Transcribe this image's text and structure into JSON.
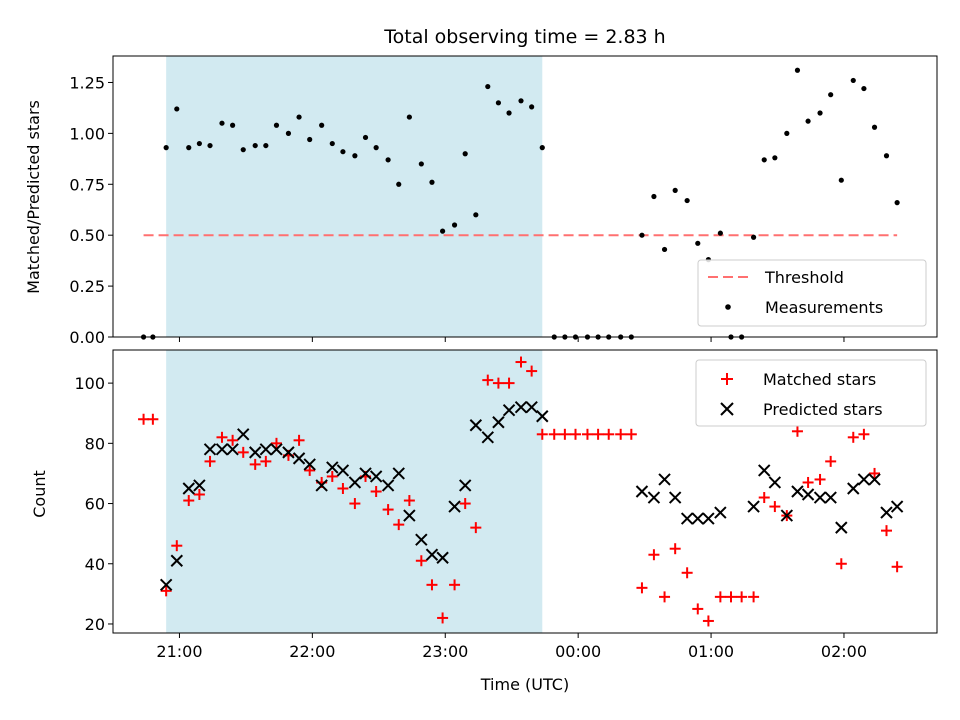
{
  "colors": {
    "shade": "#add8e6",
    "threshold": "#ff7070",
    "matched": "#ff0000",
    "predicted": "#000000",
    "measurement": "#000000"
  },
  "chart_data": [
    {
      "type": "scatter",
      "title": "Total observing time = 2.83 h",
      "xlabel": "",
      "ylabel": "Matched/Predicted stars",
      "ylim": [
        0,
        1.38
      ],
      "yticks": [
        "0.00",
        "0.25",
        "0.50",
        "0.75",
        "1.00",
        "1.25"
      ],
      "ytick_values": [
        0,
        0.25,
        0.5,
        0.75,
        1.0,
        1.25
      ],
      "shaded_span_hours": [
        20.9,
        23.73
      ],
      "threshold": {
        "name": "Threshold",
        "value": 0.5,
        "x_range_hours": [
          20.73,
          26.4
        ],
        "style": "dashed"
      },
      "legend": {
        "placement": "lower-right",
        "entries": [
          "Threshold",
          "Measurements"
        ]
      },
      "series": [
        {
          "name": "Measurements",
          "marker": "dot",
          "x_hours": [
            20.73,
            20.8,
            20.9,
            20.98,
            21.07,
            21.15,
            21.23,
            21.32,
            21.4,
            21.48,
            21.57,
            21.65,
            21.73,
            21.82,
            21.9,
            21.98,
            22.07,
            22.15,
            22.23,
            22.32,
            22.4,
            22.48,
            22.57,
            22.65,
            22.73,
            22.82,
            22.9,
            22.98,
            23.07,
            23.15,
            23.23,
            23.32,
            23.4,
            23.48,
            23.57,
            23.65,
            23.73,
            23.82,
            23.9,
            23.98,
            24.07,
            24.15,
            24.23,
            24.32,
            24.4,
            24.48,
            24.57,
            24.65,
            24.73,
            24.82,
            24.9,
            24.98,
            25.07,
            25.15,
            25.23,
            25.32,
            25.4,
            25.48,
            25.57,
            25.65,
            25.73,
            25.82,
            25.9,
            25.98,
            26.07,
            26.15,
            26.23,
            26.32,
            26.4
          ],
          "y": [
            0,
            0,
            0.93,
            1.12,
            0.93,
            0.95,
            0.94,
            1.05,
            1.04,
            0.92,
            0.94,
            0.94,
            1.04,
            1.0,
            1.08,
            0.97,
            1.04,
            0.95,
            0.91,
            0.89,
            0.98,
            0.93,
            0.87,
            0.75,
            1.08,
            0.85,
            0.76,
            0.52,
            0.55,
            0.9,
            0.6,
            1.23,
            1.15,
            1.1,
            1.16,
            1.13,
            0.93,
            0,
            0,
            0,
            0,
            0,
            0,
            0,
            0,
            0.5,
            0.69,
            0.43,
            0.72,
            0.67,
            0.46,
            0.38,
            0.51,
            0,
            0,
            0.49,
            0.87,
            0.88,
            1.0,
            1.31,
            1.06,
            1.1,
            1.19,
            0.77,
            1.26,
            1.22,
            1.03,
            0.89,
            0.66
          ]
        }
      ]
    },
    {
      "type": "scatter",
      "title": "",
      "xlabel": "Time (UTC)",
      "ylabel": "Count",
      "ylim": [
        17,
        111
      ],
      "yticks": [
        "20",
        "40",
        "60",
        "80",
        "100"
      ],
      "ytick_values": [
        20,
        40,
        60,
        80,
        100
      ],
      "xlim_hours": [
        20.5,
        26.7
      ],
      "xticks": [
        "21:00",
        "22:00",
        "23:00",
        "00:00",
        "01:00",
        "02:00"
      ],
      "xtick_values_hours": [
        21,
        22,
        23,
        24,
        25,
        26
      ],
      "shaded_span_hours": [
        20.9,
        23.73
      ],
      "legend": {
        "placement": "top-right",
        "entries": [
          "Matched stars",
          "Predicted stars"
        ]
      },
      "series": [
        {
          "name": "Matched stars",
          "marker": "plus",
          "x_hours": [
            20.73,
            20.8,
            20.9,
            20.98,
            21.07,
            21.15,
            21.23,
            21.32,
            21.4,
            21.48,
            21.57,
            21.65,
            21.73,
            21.82,
            21.9,
            21.98,
            22.07,
            22.15,
            22.23,
            22.32,
            22.4,
            22.48,
            22.57,
            22.65,
            22.73,
            22.82,
            22.9,
            22.98,
            23.07,
            23.15,
            23.23,
            23.32,
            23.4,
            23.48,
            23.57,
            23.65,
            23.73,
            23.82,
            23.9,
            23.98,
            24.07,
            24.15,
            24.23,
            24.32,
            24.4,
            24.48,
            24.57,
            24.65,
            24.73,
            24.82,
            24.9,
            24.98,
            25.07,
            25.15,
            25.23,
            25.32,
            25.4,
            25.48,
            25.57,
            25.65,
            25.73,
            25.82,
            25.9,
            25.98,
            26.07,
            26.15,
            26.23,
            26.32,
            26.4
          ],
          "y": [
            88,
            88,
            31,
            46,
            61,
            63,
            74,
            82,
            81,
            77,
            73,
            74,
            80,
            76,
            81,
            71,
            67,
            69,
            65,
            60,
            69,
            64,
            58,
            53,
            61,
            41,
            33,
            22,
            33,
            60,
            52,
            101,
            100,
            100,
            107,
            104,
            83,
            83,
            83,
            83,
            83,
            83,
            83,
            83,
            83,
            32,
            43,
            29,
            45,
            37,
            25,
            21,
            29,
            29,
            29,
            29,
            62,
            59,
            56,
            84,
            67,
            68,
            74,
            40,
            82,
            83,
            70,
            51,
            39
          ]
        },
        {
          "name": "Predicted stars",
          "marker": "x",
          "x_hours": [
            20.9,
            20.98,
            21.07,
            21.15,
            21.23,
            21.32,
            21.4,
            21.48,
            21.57,
            21.65,
            21.73,
            21.82,
            21.9,
            21.98,
            22.07,
            22.15,
            22.23,
            22.32,
            22.4,
            22.48,
            22.57,
            22.65,
            22.73,
            22.82,
            22.9,
            22.98,
            23.07,
            23.15,
            23.23,
            23.32,
            23.4,
            23.48,
            23.57,
            23.65,
            23.73,
            24.48,
            24.57,
            24.65,
            24.73,
            24.82,
            24.9,
            24.98,
            25.07,
            25.32,
            25.4,
            25.48,
            25.57,
            25.65,
            25.73,
            25.82,
            25.9,
            25.98,
            26.07,
            26.15,
            26.23,
            26.32,
            26.4
          ],
          "y": [
            33,
            41,
            65,
            66,
            78,
            78,
            78,
            83,
            77,
            78,
            78,
            77,
            75,
            73,
            66,
            72,
            71,
            67,
            70,
            69,
            66,
            70,
            56,
            48,
            43,
            42,
            59,
            66,
            86,
            82,
            87,
            91,
            92,
            92,
            89,
            64,
            62,
            68,
            62,
            55,
            55,
            55,
            57,
            59,
            71,
            67,
            56,
            64,
            63,
            62,
            62,
            52,
            65,
            68,
            68,
            57,
            59
          ]
        }
      ]
    }
  ]
}
